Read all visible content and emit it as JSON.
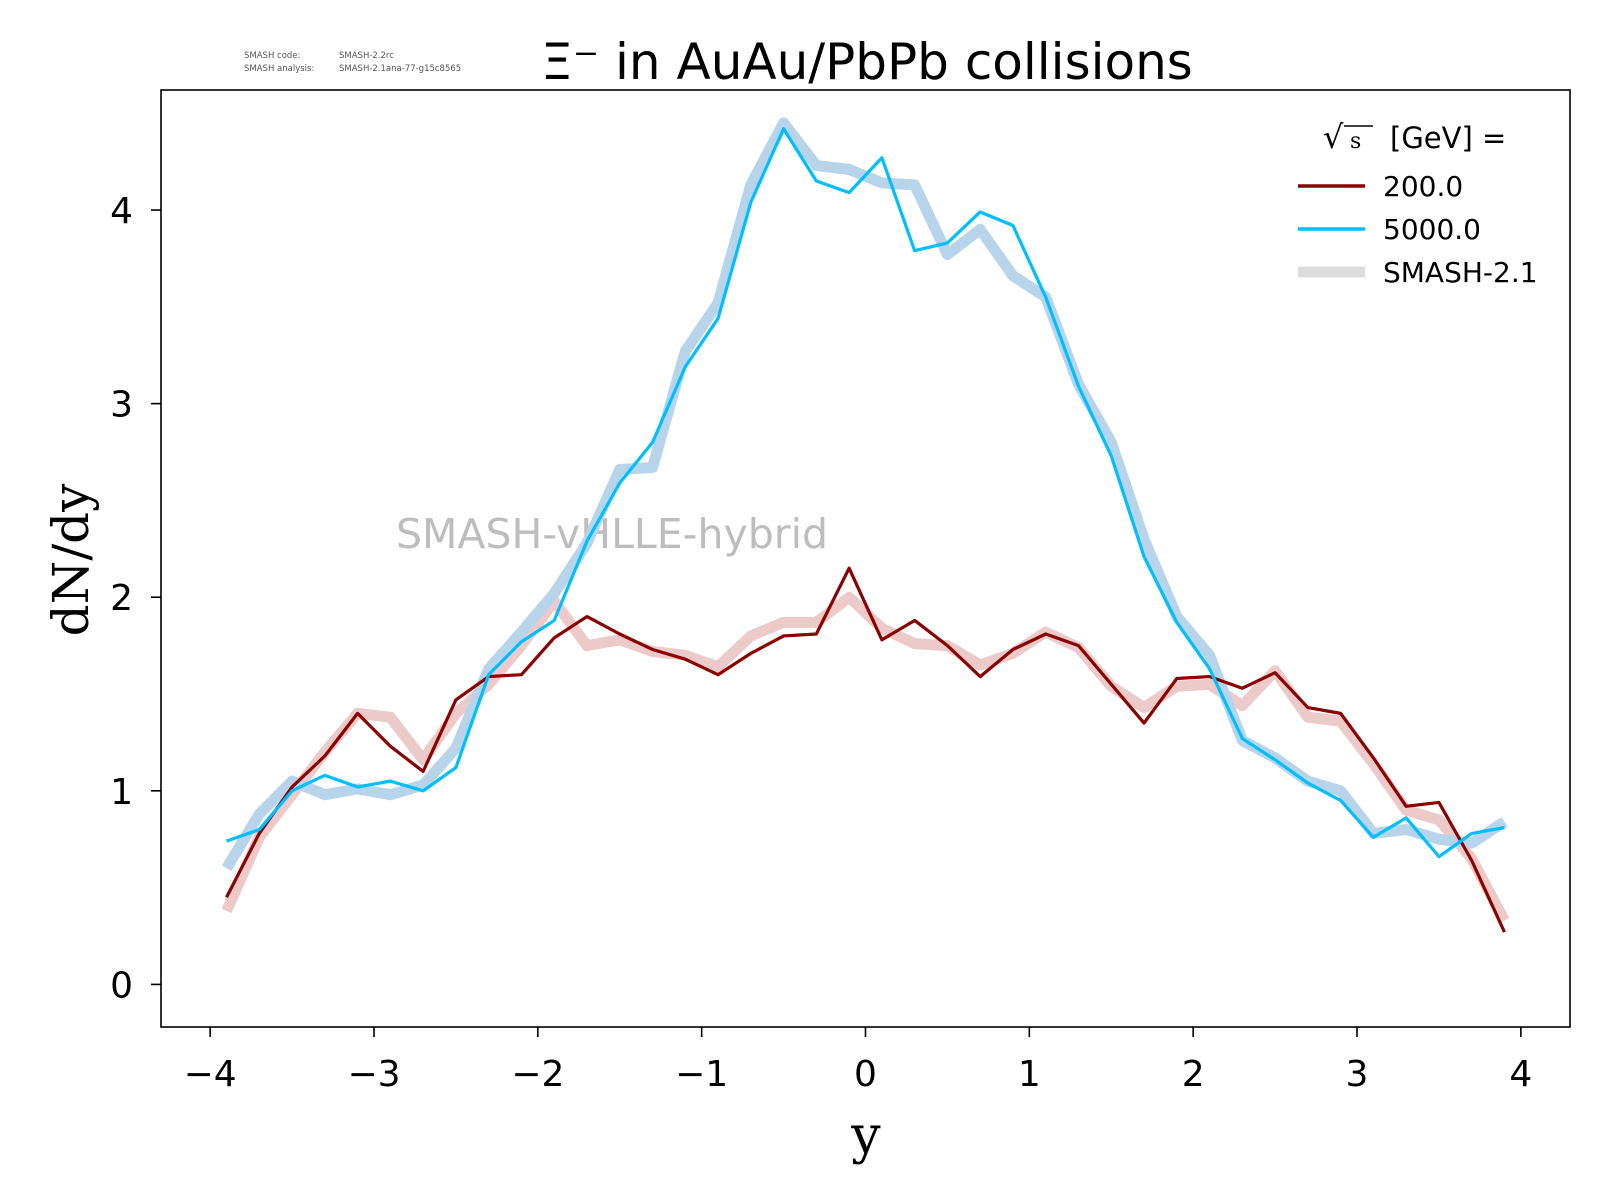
{
  "chart_data": {
    "type": "line",
    "title": "Ξ⁻ in AuAu/PbPb collisions",
    "info_lines": [
      {
        "label": "SMASH code:",
        "value": "SMASH-2.2rc"
      },
      {
        "label": "SMASH analysis:",
        "value": "SMASH-2.1ana-77-g15c8565"
      }
    ],
    "watermark": "SMASH-vHLLE-hybrid",
    "xlabel": "y",
    "ylabel": "dN/dy",
    "xlim": [
      -4.3,
      4.3
    ],
    "ylim": [
      -0.22,
      4.62
    ],
    "xticks": [
      -4,
      -3,
      -2,
      -1,
      0,
      1,
      2,
      3,
      4
    ],
    "xtick_labels": [
      "−4",
      "−3",
      "−2",
      "−1",
      "0",
      "1",
      "2",
      "3",
      "4"
    ],
    "yticks": [
      0,
      1,
      2,
      3,
      4
    ],
    "ytick_labels": [
      "0",
      "1",
      "2",
      "3",
      "4"
    ],
    "grid": false,
    "legend": {
      "placement": "top-right",
      "title_sqrt": "s",
      "title_rest": "[GeV] =",
      "entries": [
        {
          "label": "200.0",
          "color": "#8b0000",
          "style": "thin"
        },
        {
          "label": "5000.0",
          "color": "#00bfff",
          "style": "thin"
        },
        {
          "label": "SMASH-2.1",
          "color": "#dcdcdc",
          "style": "thick"
        }
      ]
    },
    "x": [
      -3.9,
      -3.7,
      -3.5,
      -3.3,
      -3.1,
      -2.9,
      -2.7,
      -2.5,
      -2.3,
      -2.1,
      -1.9,
      -1.7,
      -1.5,
      -1.3,
      -1.1,
      -0.9,
      -0.7,
      -0.5,
      -0.3,
      -0.1,
      0.1,
      0.3,
      0.5,
      0.7,
      0.9,
      1.1,
      1.3,
      1.5,
      1.7,
      1.9,
      2.1,
      2.3,
      2.5,
      2.7,
      2.9,
      3.1,
      3.3,
      3.5,
      3.7,
      3.9
    ],
    "series": [
      {
        "name": "200.0",
        "color": "#8b0000",
        "values": [
          0.45,
          0.78,
          1.02,
          1.18,
          1.4,
          1.23,
          1.1,
          1.47,
          1.59,
          1.6,
          1.79,
          1.9,
          1.81,
          1.73,
          1.68,
          1.6,
          1.71,
          1.8,
          1.81,
          2.15,
          1.78,
          1.88,
          1.75,
          1.59,
          1.73,
          1.81,
          1.75,
          1.55,
          1.35,
          1.58,
          1.59,
          1.53,
          1.61,
          1.43,
          1.4,
          1.17,
          0.92,
          0.94,
          0.64,
          0.27
        ]
      },
      {
        "name": "5000.0",
        "color": "#00bfff",
        "values": [
          0.74,
          0.8,
          1.0,
          1.08,
          1.02,
          1.05,
          1.0,
          1.12,
          1.6,
          1.77,
          1.88,
          2.29,
          2.59,
          2.8,
          3.19,
          3.44,
          4.04,
          4.42,
          4.15,
          4.09,
          4.27,
          3.79,
          3.83,
          3.99,
          3.92,
          3.55,
          3.09,
          2.73,
          2.21,
          1.87,
          1.63,
          1.27,
          1.16,
          1.04,
          0.95,
          0.76,
          0.86,
          0.66,
          0.78,
          0.81
        ]
      },
      {
        "name": "SMASH-2.1",
        "color": "#eccaca",
        "values": [
          0.38,
          0.76,
          0.98,
          1.2,
          1.4,
          1.38,
          1.16,
          1.4,
          1.55,
          1.75,
          1.98,
          1.75,
          1.78,
          1.72,
          1.7,
          1.64,
          1.8,
          1.87,
          1.87,
          2.0,
          1.84,
          1.76,
          1.75,
          1.65,
          1.71,
          1.82,
          1.74,
          1.54,
          1.43,
          1.54,
          1.55,
          1.44,
          1.62,
          1.38,
          1.36,
          1.14,
          0.9,
          0.85,
          0.65,
          0.33
        ]
      },
      {
        "name": "SMASH-2.1",
        "color": "#b8d4ea",
        "values": [
          0.6,
          0.88,
          1.05,
          0.98,
          1.01,
          0.98,
          1.03,
          1.22,
          1.63,
          1.82,
          2.02,
          2.28,
          2.66,
          2.67,
          3.27,
          3.52,
          4.13,
          4.45,
          4.23,
          4.21,
          4.14,
          4.13,
          3.77,
          3.9,
          3.66,
          3.55,
          3.1,
          2.8,
          2.3,
          1.9,
          1.7,
          1.26,
          1.17,
          1.05,
          1.0,
          0.78,
          0.8,
          0.75,
          0.73,
          0.84
        ]
      }
    ]
  }
}
